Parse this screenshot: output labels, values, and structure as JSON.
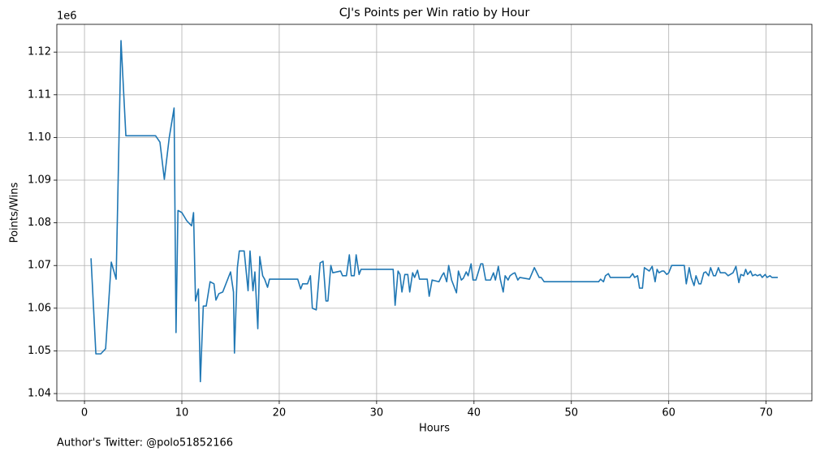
{
  "chart_data": {
    "type": "line",
    "title": "CJ's Points per Win ratio by Hour",
    "xlabel": "Hours",
    "ylabel": "Points/Wins",
    "y_offset_label": "1e6",
    "footnote": "Author's Twitter: @polo51852166",
    "grid": true,
    "xlim": [
      -2.84,
      74.7
    ],
    "ylim": [
      1.0383,
      1.1265
    ],
    "xticks": [
      0,
      10,
      20,
      30,
      40,
      50,
      60,
      70
    ],
    "yticks": [
      {
        "value": 1.04,
        "label": "1.04"
      },
      {
        "value": 1.05,
        "label": "1.05"
      },
      {
        "value": 1.06,
        "label": "1.06"
      },
      {
        "value": 1.07,
        "label": "1.07"
      },
      {
        "value": 1.08,
        "label": "1.08"
      },
      {
        "value": 1.09,
        "label": "1.09"
      },
      {
        "value": 1.1,
        "label": "1.10"
      },
      {
        "value": 1.11,
        "label": "1.11"
      },
      {
        "value": 1.12,
        "label": "1.12"
      }
    ],
    "series": [
      {
        "name": "Points/Wins",
        "color": "#1f77b4",
        "x": [
          0.67,
          1.17,
          1.67,
          2.17,
          2.5,
          2.75,
          3.25,
          3.75,
          4.25,
          7.3,
          7.75,
          8.2,
          8.7,
          9.2,
          9.4,
          9.6,
          10.0,
          10.5,
          11.0,
          11.2,
          11.4,
          11.7,
          11.9,
          12.2,
          12.5,
          12.9,
          13.3,
          13.5,
          13.8,
          14.2,
          15.0,
          15.3,
          15.4,
          15.7,
          15.9,
          16.4,
          16.8,
          17.0,
          17.3,
          17.5,
          17.8,
          18.0,
          18.3,
          18.5,
          18.8,
          19.0,
          21.9,
          22.2,
          22.4,
          22.9,
          23.2,
          23.4,
          23.8,
          24.2,
          24.5,
          24.8,
          25.0,
          25.3,
          25.5,
          26.3,
          26.5,
          26.9,
          27.2,
          27.4,
          27.7,
          27.9,
          28.2,
          28.4,
          31.7,
          31.9,
          32.2,
          32.4,
          32.6,
          32.9,
          33.2,
          33.4,
          33.7,
          33.9,
          34.2,
          34.4,
          35.2,
          35.4,
          35.7,
          36.4,
          36.7,
          36.9,
          37.2,
          37.4,
          37.7,
          38.2,
          38.4,
          38.7,
          38.9,
          39.2,
          39.4,
          39.7,
          39.9,
          40.2,
          40.7,
          40.9,
          41.2,
          41.7,
          42.0,
          42.2,
          42.5,
          42.7,
          43.0,
          43.2,
          43.5,
          43.7,
          44.0,
          44.2,
          44.5,
          44.7,
          45.7,
          46.2,
          46.7,
          46.9,
          47.2,
          52.8,
          53.0,
          53.3,
          53.5,
          53.8,
          54.0,
          56.0,
          56.3,
          56.5,
          56.8,
          57.0,
          57.3,
          57.5,
          58.0,
          58.3,
          58.6,
          58.8,
          59.0,
          59.3,
          59.5,
          59.8,
          60.0,
          60.3,
          61.6,
          61.8,
          62.1,
          62.3,
          62.6,
          62.8,
          63.1,
          63.3,
          63.6,
          63.8,
          64.1,
          64.3,
          64.6,
          64.8,
          65.1,
          65.3,
          65.8,
          66.1,
          66.6,
          66.9,
          67.2,
          67.4,
          67.7,
          67.9,
          68.1,
          68.4,
          68.6,
          68.9,
          69.1,
          69.4,
          69.6,
          69.9,
          70.1,
          70.4,
          70.6,
          71.2
        ],
        "values": [
          1.0717,
          1.0493,
          1.0493,
          1.0505,
          1.0619,
          1.0708,
          1.0668,
          1.1227,
          1.1004,
          1.1004,
          1.0989,
          1.0902,
          1.0999,
          1.1069,
          1.0543,
          1.0829,
          1.0824,
          1.0805,
          1.0793,
          1.0824,
          1.0617,
          1.0645,
          1.0428,
          1.0605,
          1.0605,
          1.0662,
          1.0657,
          1.0619,
          1.0634,
          1.0638,
          1.0685,
          1.0638,
          1.0495,
          1.0695,
          1.0734,
          1.0734,
          1.0641,
          1.0734,
          1.0641,
          1.0685,
          1.0552,
          1.0721,
          1.0676,
          1.0668,
          1.0649,
          1.0668,
          1.0668,
          1.0645,
          1.0657,
          1.0657,
          1.0676,
          1.06,
          1.0596,
          1.0706,
          1.071,
          1.0617,
          1.0617,
          1.07,
          1.0683,
          1.0687,
          1.0676,
          1.0676,
          1.0725,
          1.0676,
          1.0676,
          1.0725,
          1.0679,
          1.0691,
          1.0691,
          1.0607,
          1.0687,
          1.0679,
          1.0638,
          1.0679,
          1.0679,
          1.0638,
          1.0683,
          1.0672,
          1.0689,
          1.0668,
          1.0668,
          1.0628,
          1.0666,
          1.0662,
          1.0676,
          1.0683,
          1.0662,
          1.07,
          1.0666,
          1.0636,
          1.0687,
          1.0666,
          1.067,
          1.0685,
          1.0676,
          1.0704,
          1.0666,
          1.0666,
          1.0704,
          1.0704,
          1.0666,
          1.0666,
          1.0683,
          1.0666,
          1.0698,
          1.0668,
          1.0638,
          1.0676,
          1.0666,
          1.0676,
          1.0681,
          1.0683,
          1.0666,
          1.0672,
          1.0668,
          1.0695,
          1.0672,
          1.0672,
          1.0662,
          1.0662,
          1.0668,
          1.0662,
          1.0676,
          1.0681,
          1.0672,
          1.0672,
          1.0681,
          1.0672,
          1.0676,
          1.0647,
          1.0647,
          1.0695,
          1.0687,
          1.0698,
          1.0662,
          1.0691,
          1.0683,
          1.0687,
          1.0687,
          1.0679,
          1.0683,
          1.07,
          1.07,
          1.0657,
          1.0695,
          1.0672,
          1.0653,
          1.0676,
          1.0657,
          1.0657,
          1.0683,
          1.0685,
          1.0676,
          1.0695,
          1.0676,
          1.0676,
          1.0695,
          1.0683,
          1.0683,
          1.0676,
          1.0683,
          1.0698,
          1.066,
          1.0679,
          1.0676,
          1.0691,
          1.0679,
          1.0687,
          1.0676,
          1.0679,
          1.0676,
          1.0679,
          1.0672,
          1.0679,
          1.0672,
          1.0676,
          1.0672,
          1.0672
        ]
      }
    ]
  }
}
